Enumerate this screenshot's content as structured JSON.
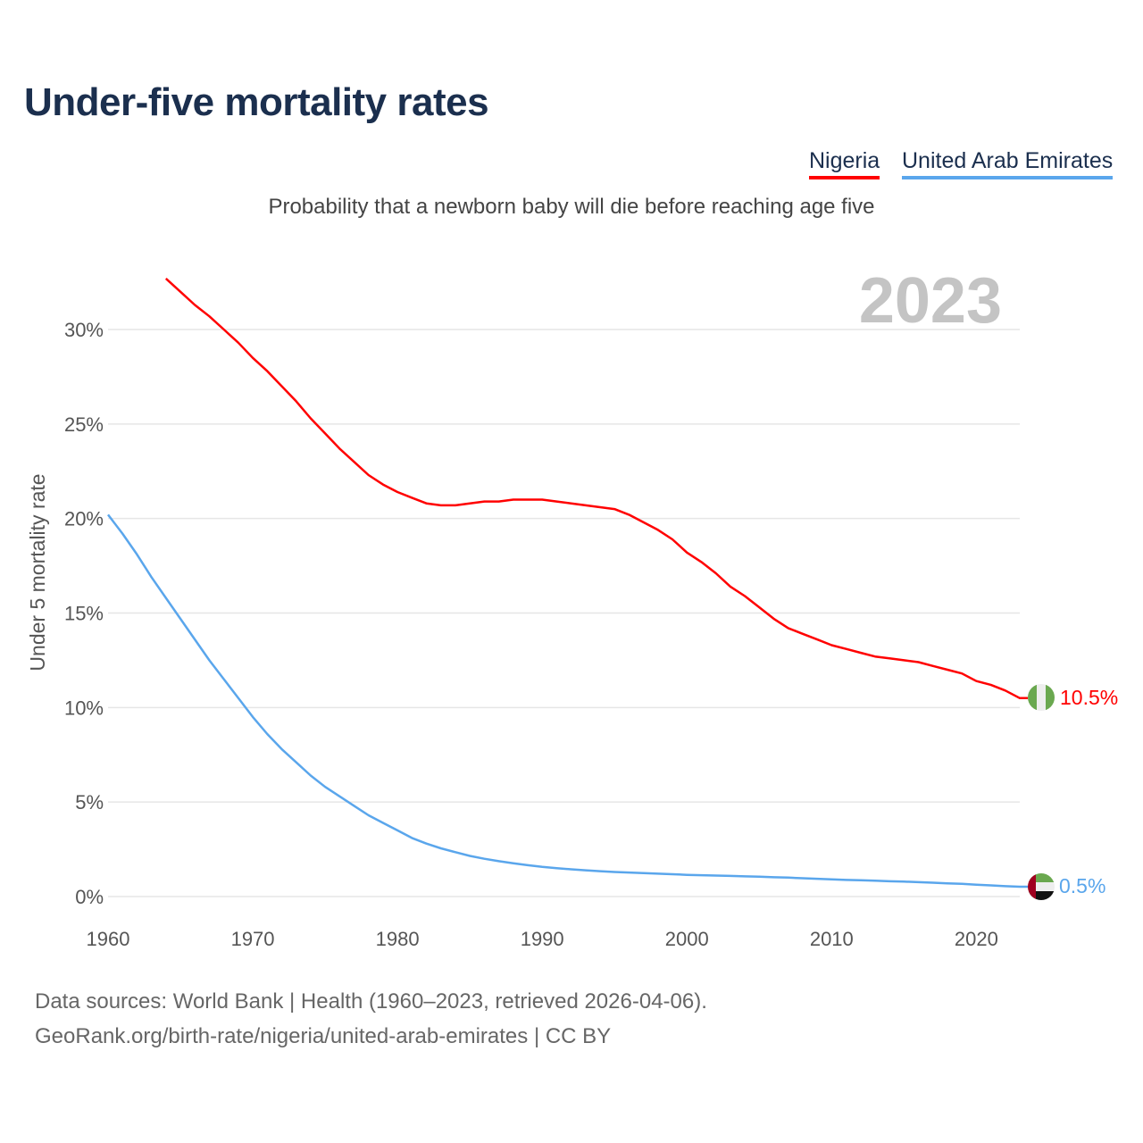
{
  "title": "Under-five mortality rates",
  "subtitle": "Probability that a newborn baby will die before reaching age five",
  "footer": {
    "line1": "Data sources: World Bank | Health (1960–2023, retrieved 2026-04-06).",
    "line2": "GeoRank.org/birth-rate/nigeria/united-arab-emirates | CC BY"
  },
  "chart_data": {
    "type": "line",
    "title": "Under-five mortality rates",
    "ylabel": "Under 5 mortality rate",
    "xlabel": "",
    "year_watermark": "2023",
    "xlim": [
      1960,
      2023
    ],
    "ylim": [
      0,
      30
    ],
    "xticks": [
      "1960",
      "1970",
      "1980",
      "1990",
      "2000",
      "2010",
      "2020"
    ],
    "yticks": [
      "0%",
      "5%",
      "10%",
      "15%",
      "20%",
      "25%",
      "30%"
    ],
    "grid": true,
    "legend_position": "top-right",
    "series": [
      {
        "name": "Nigeria",
        "color": "#ff0000",
        "end_label": "10.5%",
        "flag_icon": "nigeria-flag",
        "x": [
          1964,
          1965,
          1966,
          1967,
          1968,
          1969,
          1970,
          1971,
          1972,
          1973,
          1974,
          1975,
          1976,
          1977,
          1978,
          1979,
          1980,
          1981,
          1982,
          1983,
          1984,
          1985,
          1986,
          1987,
          1988,
          1989,
          1990,
          1991,
          1992,
          1993,
          1994,
          1995,
          1996,
          1997,
          1998,
          1999,
          2000,
          2001,
          2002,
          2003,
          2004,
          2005,
          2006,
          2007,
          2008,
          2009,
          2010,
          2011,
          2012,
          2013,
          2014,
          2015,
          2016,
          2017,
          2018,
          2019,
          2020,
          2021,
          2022,
          2023
        ],
        "values": [
          32.7,
          32.0,
          31.3,
          30.7,
          30.0,
          29.3,
          28.5,
          27.8,
          27.0,
          26.2,
          25.3,
          24.5,
          23.7,
          23.0,
          22.3,
          21.8,
          21.4,
          21.1,
          20.8,
          20.7,
          20.7,
          20.8,
          20.9,
          20.9,
          21.0,
          21.0,
          21.0,
          20.9,
          20.8,
          20.7,
          20.6,
          20.5,
          20.2,
          19.8,
          19.4,
          18.9,
          18.2,
          17.7,
          17.1,
          16.4,
          15.9,
          15.3,
          14.7,
          14.2,
          13.9,
          13.6,
          13.3,
          13.1,
          12.9,
          12.7,
          12.6,
          12.5,
          12.4,
          12.2,
          12.0,
          11.8,
          11.4,
          11.2,
          10.9,
          10.5
        ]
      },
      {
        "name": "United Arab Emirates",
        "color": "#5aa6ec",
        "end_label": "0.5%",
        "flag_icon": "uae-flag",
        "x": [
          1960,
          1961,
          1962,
          1963,
          1964,
          1965,
          1966,
          1967,
          1968,
          1969,
          1970,
          1971,
          1972,
          1973,
          1974,
          1975,
          1976,
          1977,
          1978,
          1979,
          1980,
          1981,
          1982,
          1983,
          1984,
          1985,
          1986,
          1987,
          1988,
          1989,
          1990,
          1991,
          1992,
          1993,
          1994,
          1995,
          1996,
          1997,
          1998,
          1999,
          2000,
          2001,
          2002,
          2003,
          2004,
          2005,
          2006,
          2007,
          2008,
          2009,
          2010,
          2011,
          2012,
          2013,
          2014,
          2015,
          2016,
          2017,
          2018,
          2019,
          2020,
          2021,
          2022,
          2023
        ],
        "values": [
          20.2,
          19.2,
          18.1,
          16.9,
          15.8,
          14.7,
          13.6,
          12.5,
          11.5,
          10.5,
          9.5,
          8.6,
          7.8,
          7.1,
          6.4,
          5.8,
          5.3,
          4.8,
          4.3,
          3.9,
          3.5,
          3.1,
          2.8,
          2.55,
          2.35,
          2.15,
          2.0,
          1.87,
          1.76,
          1.66,
          1.57,
          1.5,
          1.44,
          1.39,
          1.34,
          1.3,
          1.27,
          1.24,
          1.21,
          1.18,
          1.15,
          1.13,
          1.11,
          1.09,
          1.07,
          1.05,
          1.02,
          1.0,
          0.97,
          0.94,
          0.91,
          0.88,
          0.86,
          0.84,
          0.81,
          0.79,
          0.76,
          0.73,
          0.7,
          0.67,
          0.63,
          0.59,
          0.55,
          0.52
        ]
      }
    ]
  }
}
